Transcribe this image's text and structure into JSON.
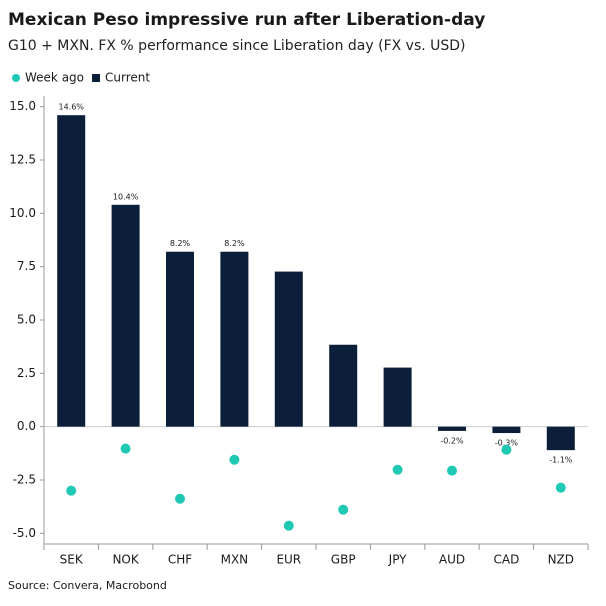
{
  "chart_data": {
    "type": "bar",
    "title": "Mexican Peso impressive run after Liberation-day",
    "subtitle": "G10 + MXN. FX % performance since Liberation day (FX vs. USD)",
    "source": "Source: Convera, Macrobond",
    "categories": [
      "SEK",
      "NOK",
      "CHF",
      "MXN",
      "EUR",
      "GBP",
      "JPY",
      "AUD",
      "CAD",
      "NZD"
    ],
    "series": [
      {
        "name": "Week ago",
        "type": "scatter",
        "color": "#1fc9b4",
        "values": [
          -3.0,
          -1.03,
          -3.38,
          -1.55,
          -4.64,
          -3.89,
          -2.02,
          -2.06,
          -1.08,
          -2.86
        ]
      },
      {
        "name": "Current",
        "type": "bar",
        "color": "#0b1f3a",
        "values": [
          14.6,
          10.4,
          8.2,
          8.2,
          7.27,
          3.84,
          2.77,
          -0.2,
          -0.3,
          -1.1
        ],
        "value_labels": [
          "14.6%",
          "10.4%",
          "8.2%",
          "8.2%",
          null,
          null,
          null,
          "-0.2%",
          "-0.3%",
          "-1.1%"
        ]
      }
    ],
    "ylim": [
      -5.5,
      15.5
    ],
    "yticks": [
      {
        "value": -5,
        "label": "-5.0"
      },
      {
        "value": -2.5,
        "label": "-2.5"
      },
      {
        "value": 0,
        "label": "0.0"
      },
      {
        "value": 2.5,
        "label": "2.5"
      },
      {
        "value": 5,
        "label": "5.0"
      },
      {
        "value": 7.5,
        "label": "7.5"
      },
      {
        "value": 10,
        "label": "10.0"
      },
      {
        "value": 12.5,
        "label": "12.5"
      },
      {
        "value": 15,
        "label": "15.0"
      }
    ],
    "grid": false
  }
}
